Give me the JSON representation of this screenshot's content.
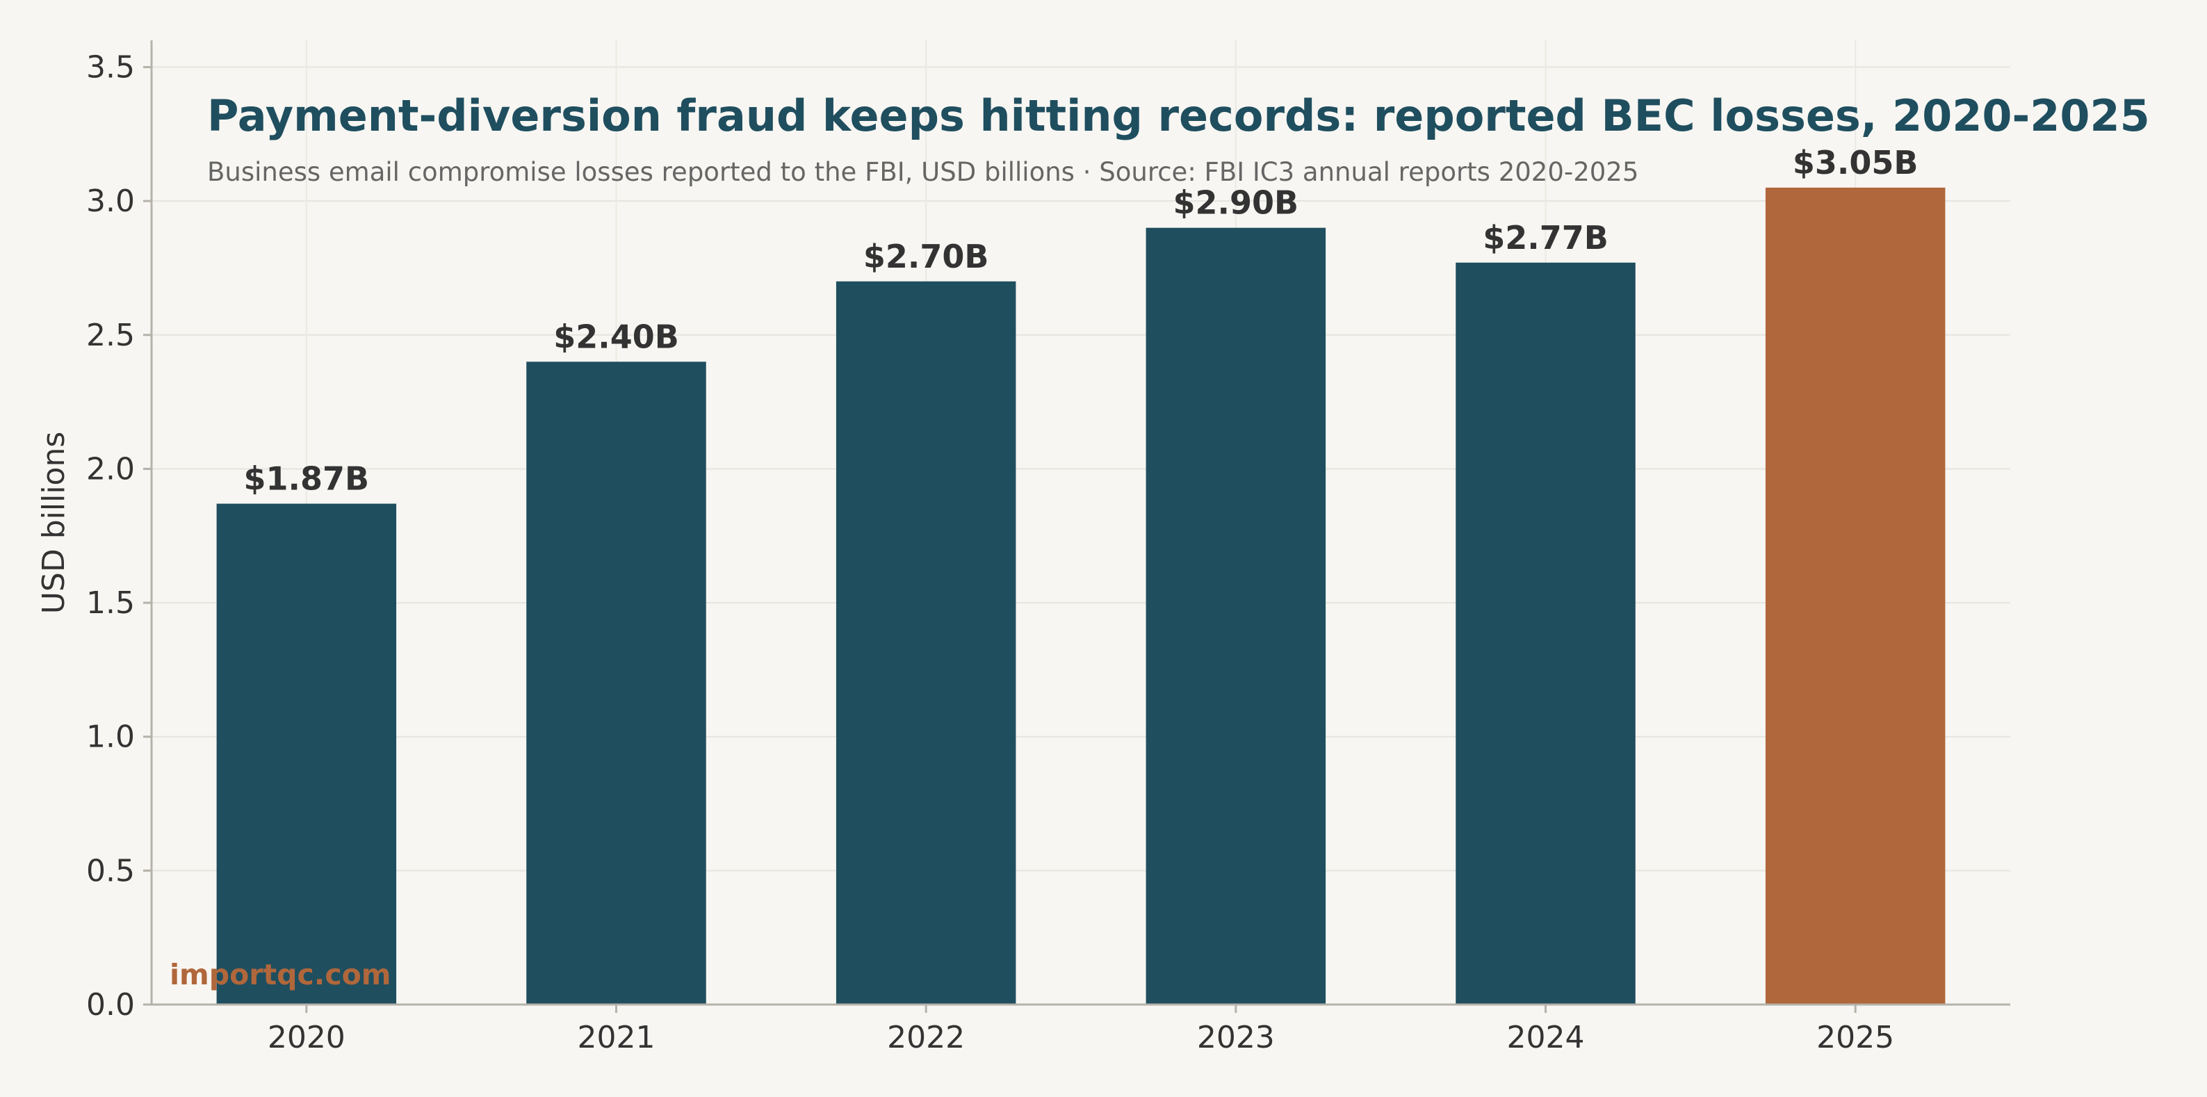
{
  "chart_data": {
    "type": "bar",
    "title": "Payment-diversion fraud keeps hitting records: reported BEC losses, 2020-2025",
    "subtitle": "Business email compromise losses reported to the FBI, USD billions · Source: FBI IC3 annual reports 2020-2025",
    "xlabel": "",
    "ylabel": "USD billions",
    "categories": [
      "2020",
      "2021",
      "2022",
      "2023",
      "2024",
      "2025"
    ],
    "values": [
      1.87,
      2.4,
      2.7,
      2.9,
      2.77,
      3.05
    ],
    "data_labels": [
      "$1.87B",
      "$2.40B",
      "$2.70B",
      "$2.90B",
      "$2.77B",
      "$3.05B"
    ],
    "ylim": [
      0,
      3.6
    ],
    "yticks": [
      "0.0",
      "0.5",
      "1.0",
      "1.5",
      "2.0",
      "2.5",
      "3.0",
      "3.5"
    ],
    "grid": true,
    "colors": {
      "bar": "#1f4e5f",
      "highlight_bar": "#b0673b",
      "highlight_category": "2025",
      "background": "#f7f6f2",
      "title": "#1f4e5f"
    }
  },
  "watermark": "importqc.com"
}
